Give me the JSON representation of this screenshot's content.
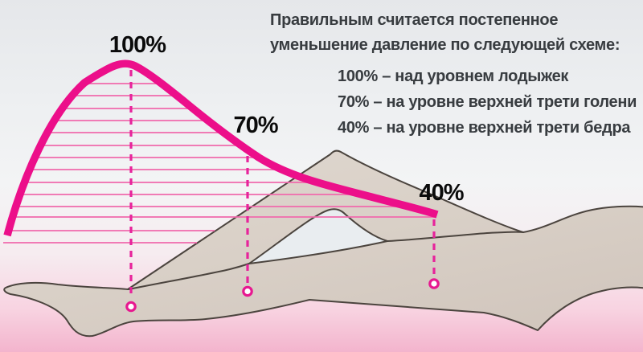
{
  "instruction": {
    "line1": "Правильным считается постепенное",
    "line2": "уменьшение давление по следующей схеме:",
    "items": [
      "100% – над уровнем лодыжек",
      "70% – на уровне верхней трети голени",
      "40% – на уровне верхней трети бедра"
    ]
  },
  "markers": [
    {
      "label": "100%"
    },
    {
      "label": "70%"
    },
    {
      "label": "40%"
    }
  ],
  "chart_data": {
    "type": "area",
    "title": "",
    "x_categories": [
      "над уровнем лодыжек",
      "на уровне верхней трети голени",
      "на уровне верхней трети бедра"
    ],
    "values": [
      100,
      70,
      40
    ],
    "unit": "%",
    "annotations": [
      "100%",
      "70%",
      "40%"
    ],
    "legend": false
  },
  "colors": {
    "curve": "#ec0f8a",
    "hatch": "#f06aac",
    "dashed_line": "#e7239b",
    "leg_fill": "#d9d0c7",
    "leg_outline": "#4b443e",
    "label_text": "#0b0b0b",
    "info_text": "#383c40",
    "background_top": "#e5e7ea",
    "background_bottom": "#f3b4cd"
  }
}
